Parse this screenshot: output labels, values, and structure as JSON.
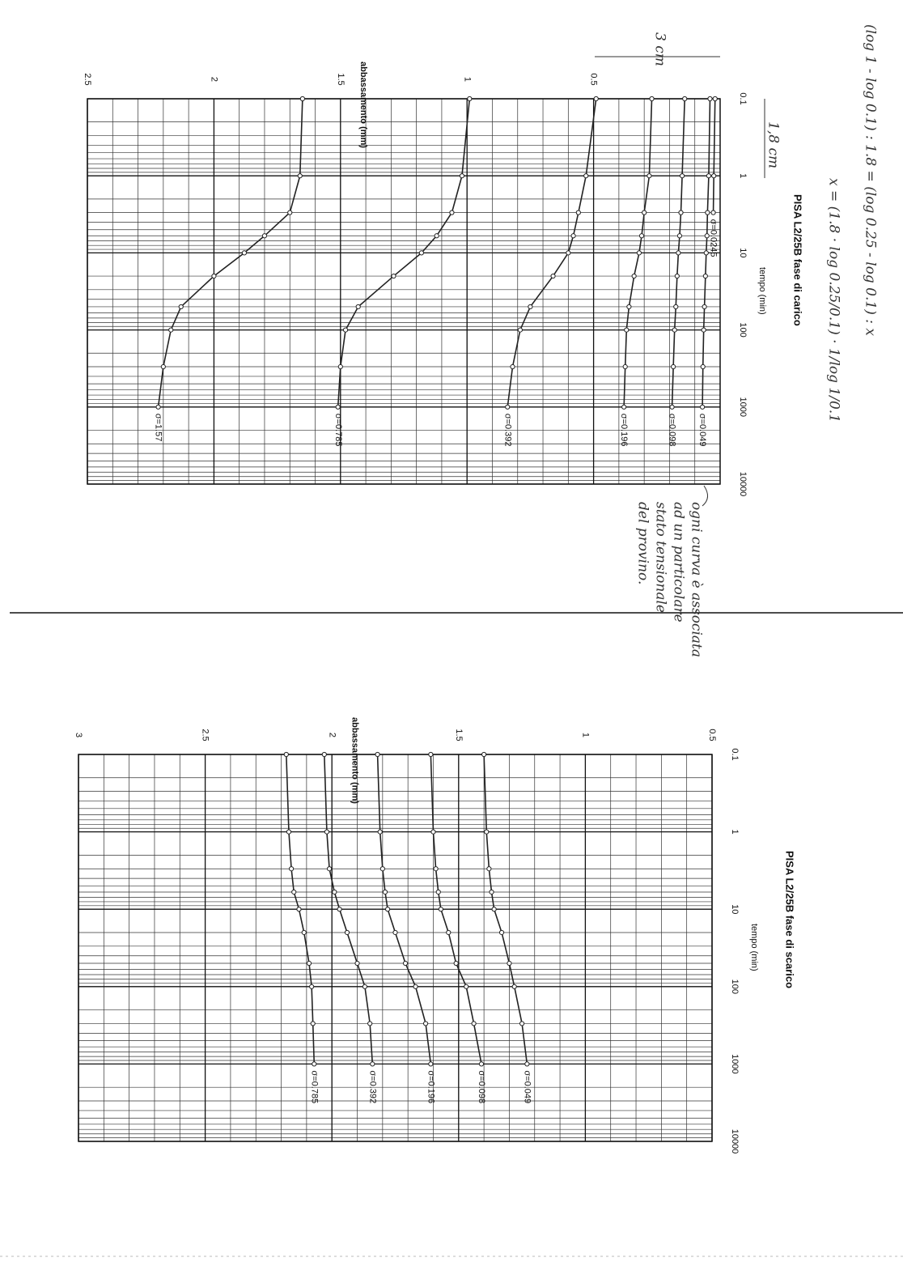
{
  "chart_data": [
    {
      "type": "line",
      "title": "PISA L2/25B fase di carico",
      "x_label": "tempo (min)",
      "y_label": "abbassamento (mm)",
      "x": [
        0.1,
        1,
        3,
        6,
        10,
        20,
        50,
        100,
        300,
        1000
      ],
      "log_x": true,
      "xlim": [
        0.1,
        10000
      ],
      "xticks": [
        0.1,
        1,
        10,
        100,
        1000,
        10000
      ],
      "ylim": [
        0,
        2.5
      ],
      "yticks": [
        0.5,
        1,
        1.5,
        2,
        2.5
      ],
      "y_reversed": true,
      "grid": true,
      "series": [
        {
          "name": "σ=0.0245",
          "color": "#222222",
          "values": [
            0.02,
            0.025,
            0.027,
            null,
            null,
            null,
            null,
            null,
            null,
            null
          ]
        },
        {
          "name": "σ=0.049",
          "color": "#222222",
          "values": [
            0.04,
            0.045,
            0.05,
            0.052,
            0.055,
            0.058,
            0.062,
            0.065,
            0.068,
            0.07
          ]
        },
        {
          "name": "σ=0.098",
          "color": "#222222",
          "values": [
            0.14,
            0.15,
            0.155,
            0.16,
            0.165,
            0.17,
            0.175,
            0.18,
            0.185,
            0.19
          ]
        },
        {
          "name": "σ=0.196",
          "color": "#222222",
          "values": [
            0.27,
            0.28,
            0.3,
            0.31,
            0.32,
            0.34,
            0.36,
            0.37,
            0.375,
            0.38
          ]
        },
        {
          "name": "σ=0.392",
          "color": "#222222",
          "values": [
            0.49,
            0.53,
            0.56,
            0.58,
            0.6,
            0.66,
            0.75,
            0.79,
            0.82,
            0.84
          ]
        },
        {
          "name": "σ=0.785",
          "color": "#222222",
          "values": [
            0.99,
            1.02,
            1.06,
            1.12,
            1.18,
            1.29,
            1.43,
            1.48,
            1.5,
            1.51
          ]
        },
        {
          "name": "σ=1.57",
          "color": "#222222",
          "values": [
            1.65,
            1.66,
            1.7,
            1.8,
            1.88,
            2.0,
            2.13,
            2.17,
            2.2,
            2.22
          ]
        }
      ]
    },
    {
      "type": "line",
      "title": "PISA L2/25B fase di scarico",
      "x_label": "tempo (min)",
      "y_label": "abbassamento (mm)",
      "x": [
        0.1,
        1,
        3,
        6,
        10,
        20,
        50,
        100,
        300,
        1000
      ],
      "log_x": true,
      "xlim": [
        0.1,
        10000
      ],
      "xticks": [
        0.1,
        1,
        10,
        100,
        1000,
        10000
      ],
      "ylim": [
        0.5,
        3
      ],
      "yticks": [
        0.5,
        1,
        1.5,
        2,
        2.5,
        3
      ],
      "y_reversed": true,
      "grid": true,
      "series": [
        {
          "name": "σ=0.049",
          "color": "#222222",
          "values": [
            1.4,
            1.39,
            1.38,
            1.37,
            1.36,
            1.33,
            1.3,
            1.28,
            1.25,
            1.23
          ]
        },
        {
          "name": "σ=0.098",
          "color": "#222222",
          "values": [
            1.61,
            1.6,
            1.59,
            1.58,
            1.57,
            1.54,
            1.51,
            1.47,
            1.44,
            1.41
          ]
        },
        {
          "name": "σ=0.196",
          "color": "#222222",
          "values": [
            1.82,
            1.81,
            1.8,
            1.79,
            1.78,
            1.75,
            1.71,
            1.67,
            1.63,
            1.61
          ]
        },
        {
          "name": "σ=0.392",
          "color": "#222222",
          "values": [
            2.03,
            2.02,
            2.01,
            1.99,
            1.97,
            1.94,
            1.9,
            1.87,
            1.85,
            1.84
          ]
        },
        {
          "name": "σ=0.785",
          "color": "#222222",
          "values": [
            2.18,
            2.17,
            2.16,
            2.15,
            2.13,
            2.11,
            2.09,
            2.08,
            2.075,
            2.07
          ]
        }
      ]
    }
  ],
  "notes": [
    "(log 1 - log 0.1) : 1.8 = (log 0.25 - log 0.1) : x",
    "x = (1.8 · log 0.25/0.1) · 1/log 1/0.1",
    "3 cm",
    "1,8 cm",
    "ogni curva è associata",
    "ad un particolare",
    "stato tensionale",
    "del provino."
  ]
}
